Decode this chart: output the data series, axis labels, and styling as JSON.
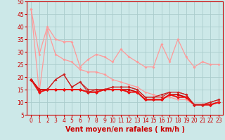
{
  "background_color": "#cce8e8",
  "grid_color": "#aacccc",
  "xlabel": "Vent moyen/en rafales ( km/h )",
  "xlabel_color": "#cc0000",
  "xlabel_fontsize": 7,
  "tick_color": "#cc0000",
  "tick_fontsize": 5.5,
  "ylim": [
    5,
    50
  ],
  "xlim": [
    -0.5,
    23.5
  ],
  "yticks": [
    5,
    10,
    15,
    20,
    25,
    30,
    35,
    40,
    45,
    50
  ],
  "xticks": [
    0,
    1,
    2,
    3,
    4,
    5,
    6,
    7,
    8,
    9,
    10,
    11,
    12,
    13,
    14,
    15,
    16,
    17,
    18,
    19,
    20,
    21,
    22,
    23
  ],
  "series": [
    {
      "x": [
        0,
        1,
        2,
        3,
        4,
        5,
        6,
        7,
        8,
        9,
        10,
        11,
        12,
        13,
        14,
        15,
        16,
        17,
        18,
        19,
        20,
        21,
        22,
        23
      ],
      "y": [
        47,
        29,
        40,
        35,
        34,
        34,
        24,
        27,
        29,
        28,
        26,
        31,
        28,
        26,
        24,
        24,
        33,
        26,
        35,
        28,
        24,
        26,
        25,
        25
      ],
      "color": "#ff9999",
      "lw": 0.9,
      "marker": "D",
      "ms": 2.0
    },
    {
      "x": [
        0,
        1,
        2,
        3,
        4,
        5,
        6,
        7,
        8,
        9,
        10,
        11,
        12,
        13,
        14,
        15,
        16,
        17,
        18,
        19,
        20,
        21,
        22,
        23
      ],
      "y": [
        47,
        14,
        39,
        29,
        27,
        26,
        23,
        22,
        22,
        21,
        19,
        18,
        17,
        16,
        14,
        13,
        12,
        12,
        11,
        11,
        9,
        9,
        9,
        10
      ],
      "color": "#ff9999",
      "lw": 0.9,
      "marker": "D",
      "ms": 2.0
    },
    {
      "x": [
        0,
        1,
        2,
        3,
        4,
        5,
        6,
        7,
        8,
        9,
        10,
        11,
        12,
        13,
        14,
        15,
        16,
        17,
        18,
        19,
        20,
        21,
        22,
        23
      ],
      "y": [
        19,
        15,
        15,
        19,
        21,
        16,
        18,
        15,
        15,
        15,
        16,
        16,
        16,
        15,
        12,
        12,
        13,
        14,
        14,
        13,
        9,
        9,
        10,
        11
      ],
      "color": "#cc2222",
      "lw": 0.9,
      "marker": "D",
      "ms": 2.0
    },
    {
      "x": [
        0,
        1,
        2,
        3,
        4,
        5,
        6,
        7,
        8,
        9,
        10,
        11,
        12,
        13,
        14,
        15,
        16,
        17,
        18,
        19,
        20,
        21,
        22,
        23
      ],
      "y": [
        19,
        15,
        15,
        15,
        15,
        15,
        15,
        14,
        14,
        15,
        15,
        15,
        15,
        14,
        11,
        11,
        11,
        13,
        13,
        12,
        9,
        9,
        9,
        10
      ],
      "color": "#cc0000",
      "lw": 1.2,
      "marker": "D",
      "ms": 2.5
    },
    {
      "x": [
        0,
        1,
        2,
        3,
        4,
        5,
        6,
        7,
        8,
        9,
        10,
        11,
        12,
        13,
        14,
        15,
        16,
        17,
        18,
        19,
        20,
        21,
        22,
        23
      ],
      "y": [
        19,
        14,
        15,
        15,
        15,
        15,
        15,
        14,
        14,
        15,
        15,
        15,
        14,
        14,
        11,
        11,
        11,
        13,
        12,
        12,
        9,
        9,
        9,
        10
      ],
      "color": "#ee1111",
      "lw": 1.4,
      "marker": "D",
      "ms": 2.5
    },
    {
      "x": [
        0,
        1,
        2,
        3,
        4,
        5,
        6,
        7,
        8,
        9,
        10,
        11,
        12,
        13,
        14,
        15,
        16,
        17,
        18,
        19,
        20,
        21,
        22,
        23
      ],
      "y": [
        19,
        15,
        15,
        19,
        21,
        16,
        18,
        14,
        15,
        15,
        16,
        16,
        16,
        15,
        12,
        12,
        12,
        14,
        14,
        13,
        9,
        9,
        10,
        11
      ],
      "color": "#cc2222",
      "lw": 0.8,
      "marker": "D",
      "ms": 1.8
    }
  ]
}
